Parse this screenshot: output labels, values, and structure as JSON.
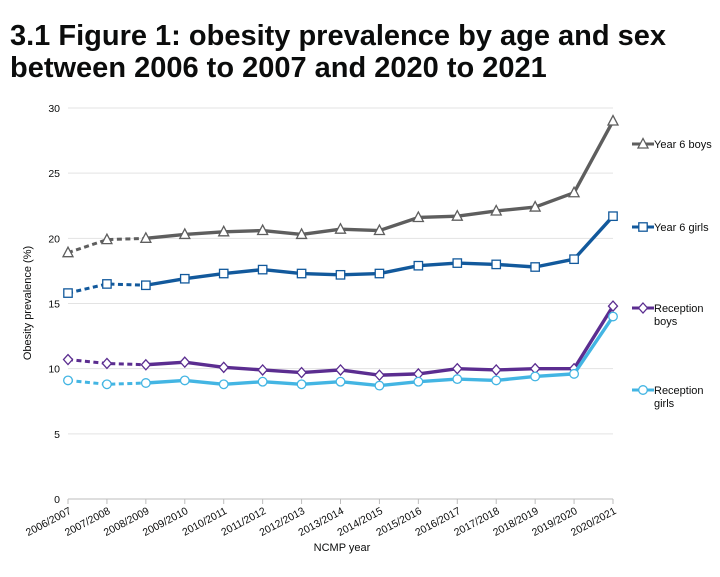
{
  "page_title": "3.1 Figure 1: obesity prevalence by age and sex between 2006 to 2007 and 2020 to 2021",
  "chart_data": {
    "type": "line",
    "title": "3.1 Figure 1: obesity prevalence by age and sex between 2006 to 2007 and 2020 to 2021",
    "xlabel": "NCMP year",
    "ylabel": "Obesity prevalence (%)",
    "ylim": [
      0,
      30
    ],
    "yticks": [
      0,
      5,
      10,
      15,
      20,
      25,
      30
    ],
    "grid": "horizontal",
    "legend_placement": "right",
    "categories": [
      "2006/2007",
      "2007/2008",
      "2008/2009",
      "2009/2010",
      "2010/2011",
      "2011/2012",
      "2012/2013",
      "2013/2014",
      "2014/2015",
      "2015/2016",
      "2016/2017",
      "2017/2018",
      "2018/2019",
      "2019/2020",
      "2020/2021"
    ],
    "dashed_segment_through_index": 2,
    "series": [
      {
        "name": "Year 6 boys",
        "legend_lines": [
          "Year 6 boys"
        ],
        "color": "#5e5e5e",
        "marker": "triangle",
        "values": [
          18.9,
          19.9,
          20.0,
          20.3,
          20.5,
          20.6,
          20.3,
          20.7,
          20.6,
          21.6,
          21.7,
          22.1,
          22.4,
          23.5,
          29.0
        ]
      },
      {
        "name": "Year 6 girls",
        "legend_lines": [
          "Year 6 girls"
        ],
        "color": "#12599c",
        "marker": "square",
        "values": [
          15.8,
          16.5,
          16.4,
          16.9,
          17.3,
          17.6,
          17.3,
          17.2,
          17.3,
          17.9,
          18.1,
          18.0,
          17.8,
          18.4,
          21.7
        ]
      },
      {
        "name": "Reception boys",
        "legend_lines": [
          "Reception",
          "boys"
        ],
        "color": "#5b2d90",
        "marker": "diamond",
        "values": [
          10.7,
          10.4,
          10.3,
          10.5,
          10.1,
          9.9,
          9.7,
          9.9,
          9.5,
          9.6,
          10.0,
          9.9,
          10.0,
          10.0,
          14.8
        ]
      },
      {
        "name": "Reception girls",
        "legend_lines": [
          "Reception",
          "girls"
        ],
        "color": "#43b5e3",
        "marker": "circle",
        "values": [
          9.1,
          8.8,
          8.9,
          9.1,
          8.8,
          9.0,
          8.8,
          9.0,
          8.7,
          9.0,
          9.2,
          9.1,
          9.4,
          9.6,
          14.0
        ]
      }
    ]
  }
}
